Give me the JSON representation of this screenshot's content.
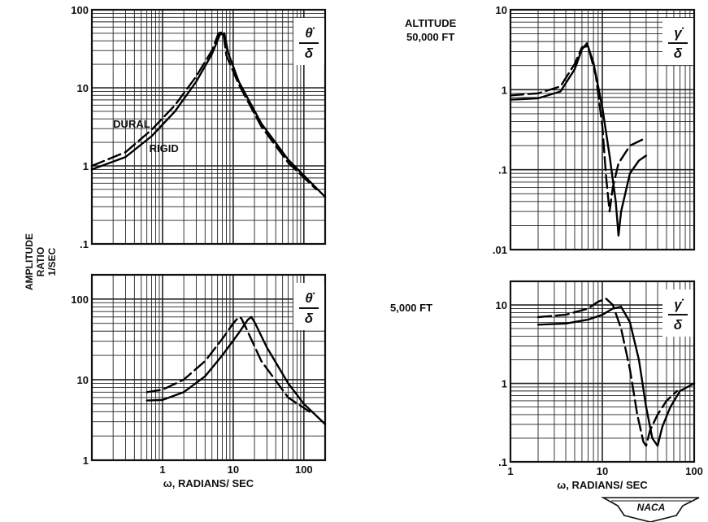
{
  "figure": {
    "side_label_lines": [
      "AMPLITUDE",
      "RATIO",
      "1/SEC"
    ],
    "altitude_labels": [
      "ALTITUDE",
      "50,000 FT",
      "5,000 FT"
    ],
    "logo": "NACA"
  },
  "chart_data": [
    {
      "type": "line",
      "quantity": {
        "num": "θ̇",
        "den": "δ"
      },
      "x_scale": "log",
      "y_scale": "log",
      "xlim": [
        0.1,
        200
      ],
      "ylim": [
        0.1,
        100
      ],
      "xlabel": "",
      "y_ticks": [
        {
          "v": 100,
          "label": "100"
        },
        {
          "v": 10,
          "label": "10"
        },
        {
          "v": 1,
          "label": "1"
        },
        {
          "v": 0.1,
          "label": ".1"
        }
      ],
      "x_ticks": [],
      "grid": true,
      "annotations": [
        {
          "text": "DURAL",
          "x": 0.2,
          "y": 3.1
        },
        {
          "text": "RIGID",
          "x": 0.65,
          "y": 1.5
        }
      ],
      "series": [
        {
          "name": "RIGID",
          "dash": "solid",
          "x": [
            0.1,
            0.3,
            0.7,
            1.5,
            3,
            5,
            6.5,
            7.5,
            8.5,
            12,
            25,
            60,
            200
          ],
          "y": [
            0.9,
            1.3,
            2.4,
            5.0,
            12,
            27,
            48,
            50,
            28,
            12,
            3.5,
            1.2,
            0.4
          ]
        },
        {
          "name": "DURAL",
          "dash": "dashed",
          "x": [
            0.1,
            0.3,
            0.7,
            1.5,
            3,
            5,
            6.2,
            7.2,
            8,
            12,
            25,
            60,
            150
          ],
          "y": [
            1.0,
            1.5,
            2.9,
            6.0,
            14,
            30,
            50,
            52,
            26,
            11,
            3.2,
            1.1,
            0.5
          ]
        }
      ]
    },
    {
      "type": "line",
      "quantity": {
        "num": "γ̇",
        "den": "δ"
      },
      "x_scale": "log",
      "y_scale": "log",
      "xlim": [
        1,
        100
      ],
      "ylim": [
        0.01,
        10
      ],
      "y_ticks": [
        {
          "v": 10,
          "label": "10"
        },
        {
          "v": 1,
          "label": "1"
        },
        {
          "v": 0.1,
          "label": ".1"
        },
        {
          "v": 0.01,
          "label": ".01"
        }
      ],
      "x_ticks": [],
      "grid": true,
      "series": [
        {
          "name": "RIGID",
          "dash": "solid",
          "x": [
            1,
            2,
            3.5,
            5,
            6,
            6.8,
            8,
            10,
            12,
            14,
            15,
            16,
            20,
            25,
            30
          ],
          "y": [
            0.75,
            0.78,
            0.95,
            1.8,
            3.2,
            3.8,
            2.2,
            0.6,
            0.15,
            0.04,
            0.015,
            0.03,
            0.09,
            0.13,
            0.15
          ]
        },
        {
          "name": "DURAL",
          "dash": "dashed",
          "x": [
            1,
            2,
            3.5,
            5,
            6,
            7,
            8.5,
            10,
            11,
            12,
            13,
            15,
            20,
            30
          ],
          "y": [
            0.85,
            0.9,
            1.1,
            2.1,
            3.4,
            3.5,
            1.5,
            0.35,
            0.08,
            0.03,
            0.06,
            0.12,
            0.2,
            0.25
          ]
        }
      ]
    },
    {
      "type": "line",
      "quantity": {
        "num": "θ̇",
        "den": "δ"
      },
      "x_scale": "log",
      "y_scale": "log",
      "xlim": [
        0.1,
        200
      ],
      "ylim": [
        1,
        200
      ],
      "xlabel": "ω, RADIANS/ SEC",
      "y_ticks": [
        {
          "v": 100,
          "label": "100"
        },
        {
          "v": 10,
          "label": "10"
        },
        {
          "v": 1,
          "label": "1"
        }
      ],
      "x_ticks": [
        {
          "v": 1,
          "label": "1"
        },
        {
          "v": 10,
          "label": "10"
        },
        {
          "v": 100,
          "label": "100"
        }
      ],
      "grid": true,
      "series": [
        {
          "name": "RIGID",
          "dash": "solid",
          "x": [
            0.6,
            1,
            2,
            4,
            7,
            12,
            16,
            18,
            20,
            30,
            60,
            100,
            200
          ],
          "y": [
            5.5,
            5.6,
            7,
            11,
            20,
            38,
            55,
            60,
            52,
            25,
            9,
            5,
            2.8
          ]
        },
        {
          "name": "DURAL",
          "dash": "dashed",
          "x": [
            0.6,
            1,
            2,
            4,
            7,
            10,
            12,
            13,
            15,
            25,
            60,
            120
          ],
          "y": [
            7,
            7.5,
            10,
            17,
            32,
            50,
            60,
            58,
            45,
            17,
            6,
            4
          ]
        }
      ]
    },
    {
      "type": "line",
      "quantity": {
        "num": "γ̇",
        "den": "δ"
      },
      "x_scale": "log",
      "y_scale": "log",
      "xlim": [
        1,
        100
      ],
      "ylim": [
        0.1,
        20
      ],
      "xlabel": "ω, RADIANS/ SEC",
      "y_ticks": [
        {
          "v": 10,
          "label": "10"
        },
        {
          "v": 1,
          "label": "1"
        },
        {
          "v": 0.1,
          "label": ".1"
        }
      ],
      "x_ticks": [
        {
          "v": 1,
          "label": "1"
        },
        {
          "v": 10,
          "label": "10"
        },
        {
          "v": 100,
          "label": "100"
        }
      ],
      "grid": true,
      "series": [
        {
          "name": "RIGID",
          "dash": "solid",
          "x": [
            2,
            4,
            7,
            10,
            13,
            16,
            20,
            25,
            30,
            35,
            40,
            45,
            55,
            70,
            100
          ],
          "y": [
            5.6,
            5.8,
            6.5,
            7.5,
            9,
            9.5,
            6,
            2,
            0.5,
            0.2,
            0.16,
            0.28,
            0.5,
            0.8,
            1
          ]
        },
        {
          "name": "DURAL",
          "dash": "dashed",
          "x": [
            2,
            4,
            7,
            9,
            11,
            13,
            16,
            20,
            24,
            28,
            30,
            33,
            40,
            50,
            65
          ],
          "y": [
            7,
            7.5,
            9,
            11,
            12,
            10,
            5,
            1.5,
            0.4,
            0.18,
            0.16,
            0.25,
            0.4,
            0.6,
            0.8
          ]
        }
      ]
    }
  ]
}
